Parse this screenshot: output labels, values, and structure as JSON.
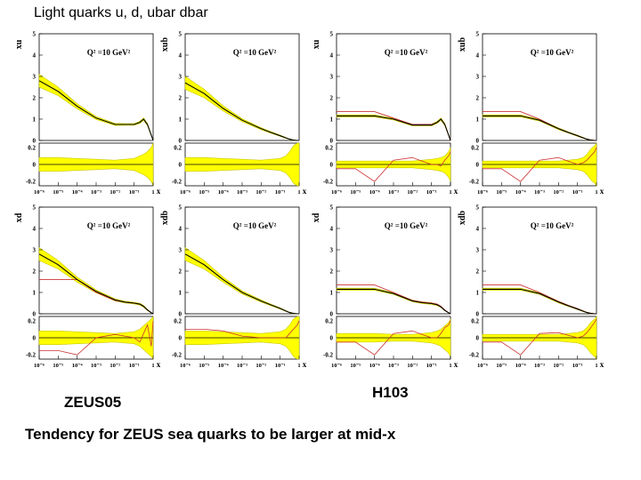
{
  "slide": {
    "title": "Light quarks u, d, ubar dbar",
    "label_left": "ZEUS05",
    "label_right": "H103",
    "caption": "Tendency for ZEUS sea quarks to be larger at mid-x"
  },
  "colors": {
    "band": "#ffff00",
    "band_edge": "#c8c800",
    "central": "#000000",
    "other": "#cc3333"
  },
  "chart_data": [
    {
      "type": "line",
      "group": "ZEUS05",
      "ylabel": "xu",
      "annotation": "Q² =10 GeV²",
      "xlabel": "x",
      "x_ticks": [
        "10⁻⁶",
        "10⁻⁵",
        "10⁻⁴",
        "10⁻³",
        "10⁻²",
        "10⁻¹",
        "1"
      ],
      "y_ticks": [
        "0",
        "1",
        "2",
        "3",
        "4",
        "5"
      ],
      "ratio_ticks": [
        "0.2",
        "0",
        "-0.2"
      ],
      "ylim": [
        0,
        5
      ],
      "ratio_ylim": [
        -0.25,
        0.25
      ],
      "logx": [
        -6,
        -5,
        -4,
        -3,
        -2,
        -1.5,
        -1,
        -0.7,
        -0.5,
        -0.3,
        -0.1,
        0
      ],
      "central": [
        2.8,
        2.3,
        1.6,
        1.05,
        0.75,
        0.75,
        0.75,
        0.85,
        1.0,
        0.75,
        0.25,
        0.0
      ],
      "band_width": [
        0.3,
        0.2,
        0.12,
        0.07,
        0.05,
        0.04,
        0.04,
        0.05,
        0.06,
        0.05,
        0.03,
        0.0
      ],
      "other": null,
      "ratio_band": [
        0.08,
        0.08,
        0.07,
        0.06,
        0.05,
        0.06,
        0.07,
        0.1,
        0.12,
        0.15,
        0.2,
        0.25
      ],
      "ratio_other": null
    },
    {
      "type": "line",
      "group": "ZEUS05",
      "ylabel": "xub",
      "annotation": "Q² =10 GeV²",
      "xlabel": "x",
      "x_ticks": [
        "10⁻⁶",
        "10⁻⁵",
        "10⁻⁴",
        "10⁻³",
        "10⁻²",
        "10⁻¹",
        "1"
      ],
      "y_ticks": [
        "0",
        "1",
        "2",
        "3",
        "4",
        "5"
      ],
      "ratio_ticks": [
        "0.2",
        "0",
        "-0.2"
      ],
      "ylim": [
        0,
        5
      ],
      "ratio_ylim": [
        -0.25,
        0.25
      ],
      "logx": [
        -6,
        -5,
        -4,
        -3,
        -2,
        -1.5,
        -1,
        -0.7,
        -0.5,
        -0.3,
        -0.1,
        0
      ],
      "central": [
        2.7,
        2.2,
        1.5,
        0.95,
        0.55,
        0.38,
        0.22,
        0.12,
        0.06,
        0.02,
        0.0,
        0.0
      ],
      "band_width": [
        0.3,
        0.2,
        0.12,
        0.07,
        0.05,
        0.04,
        0.03,
        0.02,
        0.01,
        0.01,
        0.0,
        0.0
      ],
      "other": null,
      "ratio_band": [
        0.08,
        0.08,
        0.07,
        0.06,
        0.05,
        0.06,
        0.07,
        0.1,
        0.15,
        0.22,
        0.25,
        0.25
      ],
      "ratio_other": null
    },
    {
      "type": "line",
      "group": "H103",
      "ylabel": "xu",
      "annotation": "Q² =10 GeV²",
      "xlabel": "x",
      "x_ticks": [
        "10⁻⁶",
        "10⁻⁵",
        "10⁻⁴",
        "10⁻³",
        "10⁻²",
        "10⁻¹",
        "1"
      ],
      "y_ticks": [
        "0",
        "1",
        "2",
        "3",
        "4",
        "5"
      ],
      "ratio_ticks": [
        "0.2",
        "0",
        "-0.2"
      ],
      "ylim": [
        0,
        5
      ],
      "ratio_ylim": [
        -0.25,
        0.25
      ],
      "logx": [
        -6,
        -5,
        -4,
        -3,
        -2,
        -1.5,
        -1,
        -0.7,
        -0.5,
        -0.3,
        -0.1,
        0
      ],
      "central": [
        1.15,
        1.15,
        1.15,
        1.0,
        0.72,
        0.72,
        0.72,
        0.85,
        1.0,
        0.75,
        0.25,
        0.0
      ],
      "band_width": [
        0.05,
        0.05,
        0.05,
        0.04,
        0.04,
        0.04,
        0.04,
        0.05,
        0.06,
        0.05,
        0.03,
        0.0
      ],
      "other": [
        1.35,
        1.35,
        1.35,
        1.05,
        0.75,
        0.75,
        0.75,
        0.85,
        1.0,
        0.75,
        0.25,
        0.0
      ],
      "ratio_band": [
        0.04,
        0.04,
        0.04,
        0.04,
        0.04,
        0.05,
        0.06,
        0.07,
        0.08,
        0.1,
        0.15,
        0.2
      ],
      "ratio_other": [
        -0.05,
        -0.05,
        -0.2,
        0.05,
        0.08,
        0.04,
        0.0,
        0.0,
        -0.02,
        0.05,
        0.1,
        0.15
      ]
    },
    {
      "type": "line",
      "group": "H103",
      "ylabel": "xub",
      "annotation": "Q² =10 GeV²",
      "xlabel": "x",
      "x_ticks": [
        "10⁻⁶",
        "10⁻⁵",
        "10⁻⁴",
        "10⁻³",
        "10⁻²",
        "10⁻¹",
        "1"
      ],
      "y_ticks": [
        "0",
        "1",
        "2",
        "3",
        "4",
        "5"
      ],
      "ratio_ticks": [
        "0.2",
        "0",
        "-0.2"
      ],
      "ylim": [
        0,
        5
      ],
      "ratio_ylim": [
        -0.25,
        0.25
      ],
      "logx": [
        -6,
        -5,
        -4,
        -3,
        -2,
        -1.5,
        -1,
        -0.7,
        -0.5,
        -0.3,
        -0.1,
        0
      ],
      "central": [
        1.15,
        1.15,
        1.15,
        0.95,
        0.55,
        0.38,
        0.22,
        0.12,
        0.06,
        0.02,
        0.0,
        0.0
      ],
      "band_width": [
        0.05,
        0.05,
        0.05,
        0.04,
        0.04,
        0.03,
        0.03,
        0.02,
        0.01,
        0.01,
        0.0,
        0.0
      ],
      "other": [
        1.35,
        1.35,
        1.35,
        1.0,
        0.55,
        0.38,
        0.22,
        0.12,
        0.06,
        0.02,
        0.0,
        0.0
      ],
      "ratio_band": [
        0.04,
        0.04,
        0.04,
        0.04,
        0.04,
        0.05,
        0.06,
        0.08,
        0.12,
        0.18,
        0.22,
        0.25
      ],
      "ratio_other": [
        -0.05,
        -0.05,
        -0.2,
        0.05,
        0.08,
        0.04,
        0.0,
        0.02,
        0.05,
        0.1,
        0.15,
        0.2
      ]
    },
    {
      "type": "line",
      "group": "ZEUS05",
      "ylabel": "xd",
      "annotation": "Q² =10 GeV²",
      "xlabel": "x",
      "x_ticks": [
        "10⁻⁶",
        "10⁻⁵",
        "10⁻⁴",
        "10⁻³",
        "10⁻²",
        "10⁻¹",
        "1"
      ],
      "y_ticks": [
        "0",
        "1",
        "2",
        "3",
        "4",
        "5"
      ],
      "ratio_ticks": [
        "0.2",
        "0",
        "-0.2"
      ],
      "ylim": [
        0,
        5
      ],
      "ratio_ylim": [
        -0.25,
        0.25
      ],
      "logx": [
        -6,
        -5,
        -4,
        -3,
        -2,
        -1.5,
        -1,
        -0.7,
        -0.5,
        -0.3,
        -0.1,
        0
      ],
      "central": [
        2.8,
        2.3,
        1.6,
        1.05,
        0.65,
        0.55,
        0.5,
        0.45,
        0.35,
        0.18,
        0.05,
        0.0
      ],
      "band_width": [
        0.3,
        0.2,
        0.12,
        0.07,
        0.05,
        0.04,
        0.04,
        0.04,
        0.04,
        0.03,
        0.01,
        0.0
      ],
      "other": [
        1.6,
        1.6,
        1.6,
        1.0,
        0.62,
        0.55,
        0.5,
        0.45,
        0.35,
        0.18,
        0.05,
        0.0
      ],
      "ratio_band": [
        0.08,
        0.08,
        0.07,
        0.06,
        0.05,
        0.06,
        0.07,
        0.1,
        0.14,
        0.18,
        0.22,
        0.25
      ],
      "ratio_other": [
        -0.15,
        -0.15,
        -0.2,
        0.0,
        0.04,
        0.02,
        0.0,
        -0.05,
        0.05,
        0.15,
        -0.1,
        0.2
      ]
    },
    {
      "type": "line",
      "group": "ZEUS05",
      "ylabel": "xdb",
      "annotation": "Q² =10 GeV²",
      "xlabel": "x",
      "x_ticks": [
        "10⁻⁶",
        "10⁻⁵",
        "10⁻⁴",
        "10⁻³",
        "10⁻²",
        "10⁻¹",
        "1"
      ],
      "y_ticks": [
        "0",
        "1",
        "2",
        "3",
        "4",
        "5"
      ],
      "ratio_ticks": [
        "0.2",
        "0",
        "-0.2"
      ],
      "ylim": [
        0,
        5
      ],
      "ratio_ylim": [
        -0.25,
        0.25
      ],
      "logx": [
        -6,
        -5,
        -4,
        -3,
        -2,
        -1.5,
        -1,
        -0.7,
        -0.5,
        -0.3,
        -0.1,
        0
      ],
      "central": [
        2.8,
        2.3,
        1.6,
        1.0,
        0.6,
        0.42,
        0.25,
        0.13,
        0.06,
        0.02,
        0.0,
        0.0
      ],
      "band_width": [
        0.3,
        0.2,
        0.12,
        0.07,
        0.05,
        0.04,
        0.03,
        0.02,
        0.01,
        0.01,
        0.0,
        0.0
      ],
      "other": null,
      "ratio_band": [
        0.08,
        0.08,
        0.07,
        0.06,
        0.05,
        0.06,
        0.07,
        0.1,
        0.15,
        0.22,
        0.25,
        0.25
      ],
      "ratio_other": [
        0.1,
        0.1,
        0.08,
        0.02,
        0.0,
        0.0,
        0.0,
        0.0,
        0.05,
        0.1,
        0.15,
        0.2
      ]
    },
    {
      "type": "line",
      "group": "H103",
      "ylabel": "xd",
      "annotation": "Q² =10 GeV²",
      "xlabel": "x",
      "x_ticks": [
        "10⁻⁶",
        "10⁻⁵",
        "10⁻⁴",
        "10⁻³",
        "10⁻²",
        "10⁻¹",
        "1"
      ],
      "y_ticks": [
        "0",
        "1",
        "2",
        "3",
        "4",
        "5"
      ],
      "ratio_ticks": [
        "0.2",
        "0",
        "-0.2"
      ],
      "ylim": [
        0,
        5
      ],
      "ratio_ylim": [
        -0.25,
        0.25
      ],
      "logx": [
        -6,
        -5,
        -4,
        -3,
        -2,
        -1.5,
        -1,
        -0.7,
        -0.5,
        -0.3,
        -0.1,
        0
      ],
      "central": [
        1.15,
        1.15,
        1.15,
        0.95,
        0.6,
        0.52,
        0.48,
        0.42,
        0.32,
        0.16,
        0.05,
        0.0
      ],
      "band_width": [
        0.05,
        0.05,
        0.05,
        0.04,
        0.04,
        0.04,
        0.04,
        0.04,
        0.03,
        0.02,
        0.01,
        0.0
      ],
      "other": [
        1.35,
        1.35,
        1.35,
        1.0,
        0.62,
        0.55,
        0.5,
        0.45,
        0.35,
        0.18,
        0.05,
        0.0
      ],
      "ratio_band": [
        0.05,
        0.05,
        0.05,
        0.04,
        0.04,
        0.05,
        0.06,
        0.08,
        0.1,
        0.14,
        0.18,
        0.22
      ],
      "ratio_other": [
        -0.05,
        -0.05,
        -0.2,
        0.05,
        0.08,
        0.04,
        0.0,
        0.0,
        0.05,
        0.12,
        0.15,
        0.2
      ]
    },
    {
      "type": "line",
      "group": "H103",
      "ylabel": "xdb",
      "annotation": "Q² =10 GeV²",
      "xlabel": "x",
      "x_ticks": [
        "10⁻⁶",
        "10⁻⁵",
        "10⁻⁴",
        "10⁻³",
        "10⁻²",
        "10⁻¹",
        "1"
      ],
      "y_ticks": [
        "0",
        "1",
        "2",
        "3",
        "4",
        "5"
      ],
      "ratio_ticks": [
        "0.2",
        "0",
        "-0.2"
      ],
      "ylim": [
        0,
        5
      ],
      "ratio_ylim": [
        -0.25,
        0.25
      ],
      "logx": [
        -6,
        -5,
        -4,
        -3,
        -2,
        -1.5,
        -1,
        -0.7,
        -0.5,
        -0.3,
        -0.1,
        0
      ],
      "central": [
        1.15,
        1.15,
        1.15,
        0.95,
        0.55,
        0.38,
        0.22,
        0.12,
        0.06,
        0.02,
        0.0,
        0.0
      ],
      "band_width": [
        0.05,
        0.05,
        0.05,
        0.04,
        0.04,
        0.03,
        0.03,
        0.02,
        0.01,
        0.01,
        0.0,
        0.0
      ],
      "other": [
        1.35,
        1.35,
        1.35,
        1.0,
        0.58,
        0.4,
        0.24,
        0.13,
        0.06,
        0.02,
        0.0,
        0.0
      ],
      "ratio_band": [
        0.04,
        0.04,
        0.04,
        0.04,
        0.04,
        0.05,
        0.06,
        0.08,
        0.12,
        0.18,
        0.22,
        0.25
      ],
      "ratio_other": [
        -0.05,
        -0.05,
        -0.2,
        0.05,
        0.06,
        0.03,
        0.0,
        0.02,
        0.06,
        0.12,
        0.18,
        0.22
      ]
    }
  ]
}
